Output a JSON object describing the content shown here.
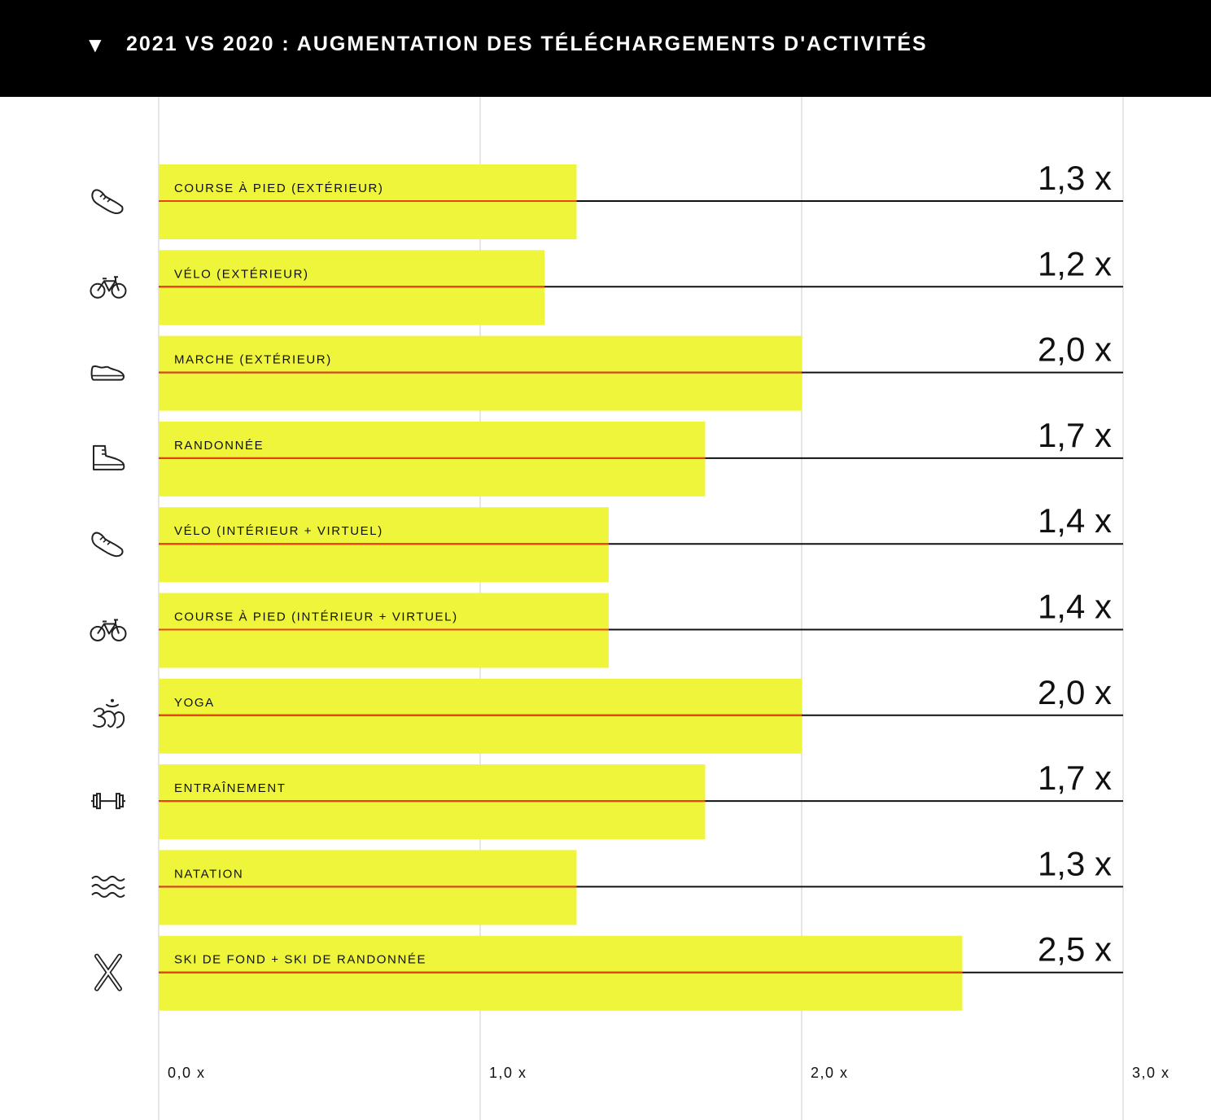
{
  "header": {
    "toggle_glyph": "▼",
    "title": "2021 VS 2020 : AUGMENTATION DES TÉLÉCHARGEMENTS D'ACTIVITÉS"
  },
  "colors": {
    "bar": "#eef53a",
    "median_line": "#e8441a",
    "row_line": "#111111",
    "grid": "#dddddd",
    "header_bg": "#000000"
  },
  "chart_data": {
    "type": "bar",
    "orientation": "horizontal",
    "categories": [
      "COURSE À PIED (EXTÉRIEUR)",
      "VÉLO (EXTÉRIEUR)",
      "MARCHE (EXTÉRIEUR)",
      "RANDONNÉE",
      "VÉLO (INTÉRIEUR + VIRTUEL)",
      "COURSE À PIED (INTÉRIEUR + VIRTUEL)",
      "YOGA",
      "ENTRAÎNEMENT",
      "NATATION",
      "SKI DE FOND + SKI DE RANDONNÉE"
    ],
    "icons": [
      "running-shoe-icon",
      "bicycle-icon",
      "walking-shoe-icon",
      "hiking-boot-icon",
      "running-shoe-icon",
      "bicycle-icon",
      "om-icon",
      "dumbbell-icon",
      "waves-icon",
      "crossed-skis-icon"
    ],
    "values": [
      1.3,
      1.2,
      2.0,
      1.7,
      1.4,
      1.4,
      2.0,
      1.7,
      1.3,
      2.5
    ],
    "value_labels": [
      "1,3 x",
      "1,2 x",
      "2,0 x",
      "1,7 x",
      "1,4 x",
      "1,4 x",
      "2,0 x",
      "1,7 x",
      "1,3 x",
      "2,5 x"
    ],
    "xlim": [
      0,
      3
    ],
    "xticks": [
      0,
      1,
      2,
      3
    ],
    "xtick_labels": [
      "0,0 x",
      "1,0 x",
      "2,0 x",
      "3,0 x"
    ],
    "grid": true
  }
}
